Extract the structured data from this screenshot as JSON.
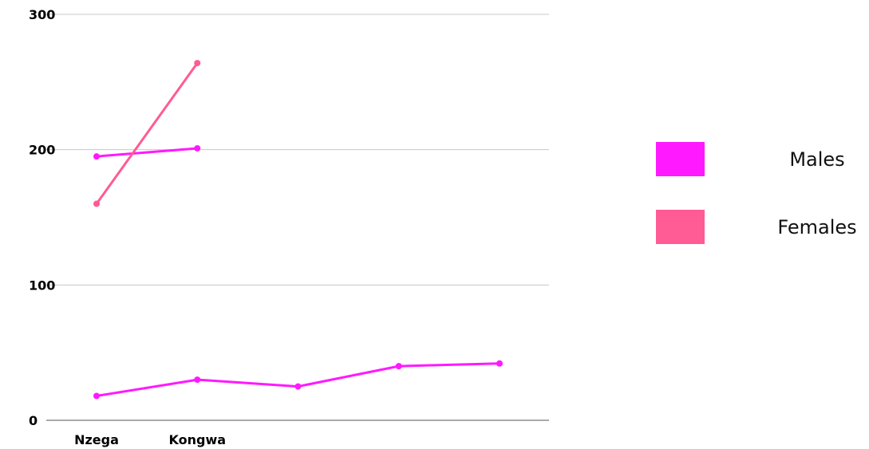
{
  "chart_data": {
    "type": "line",
    "categories": [
      "Nzega",
      "Kongwa",
      "",
      "",
      ""
    ],
    "ylim": [
      0,
      300
    ],
    "yticks": [
      0,
      100,
      200,
      300
    ],
    "grid": true,
    "legend_placement": "right",
    "series": [
      {
        "name": "Males",
        "color": "#FF19FF",
        "values": [
          195,
          201,
          null,
          null,
          null
        ]
      },
      {
        "name": "Females",
        "color": "#FF5B95",
        "values": [
          160,
          264,
          null,
          null,
          null
        ]
      },
      {
        "name": "",
        "color": "#FF19FF",
        "values": [
          18,
          30,
          25,
          40,
          42
        ]
      }
    ],
    "legend": [
      {
        "label": "Males",
        "color": "#FF19FF"
      },
      {
        "label": "Females",
        "color": "#FF5B95"
      }
    ]
  }
}
